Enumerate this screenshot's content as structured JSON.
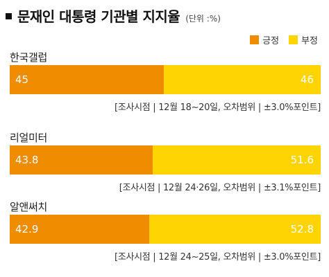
{
  "header": {
    "title": "문재인 대통령 기관별 지지율",
    "unit": "(단위 :%)"
  },
  "legend": [
    {
      "label": "긍정",
      "color": "#f08c00"
    },
    {
      "label": "부정",
      "color": "#ffd400"
    }
  ],
  "colors": {
    "positive": "#f08c00",
    "negative": "#ffd400"
  },
  "chart_data": {
    "type": "bar",
    "orientation": "horizontal",
    "stacked": true,
    "title": "문재인 대통령 기관별 지지율",
    "unit": "(단위 :%)",
    "categories": [
      "한국갤럽",
      "리얼미터",
      "알앤써치"
    ],
    "series": [
      {
        "name": "긍정",
        "values": [
          45,
          43.8,
          42.9
        ],
        "value_labels": [
          "45",
          "43.8",
          "42.9"
        ]
      },
      {
        "name": "부정",
        "values": [
          46,
          51.6,
          52.8
        ],
        "value_labels": [
          "46",
          "51.6",
          "52.8"
        ]
      }
    ],
    "notes": [
      "[조사시점 | 12월 18~20일, 오차범위 | ±3.0%포인트]",
      "[조사시점 | 12월 24·26일, 오차범위 | ±3.1%포인트]",
      "[조사시점 | 12월 24~25일, 오차범위 | ±3.0%포인트]"
    ],
    "legend_position": "top-right",
    "grid": false
  }
}
